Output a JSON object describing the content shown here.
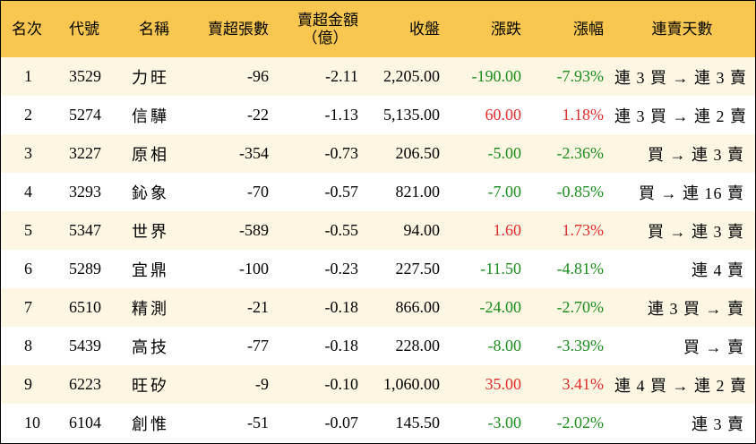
{
  "columns": {
    "rank": "名次",
    "code": "代號",
    "name": "名稱",
    "net_sell_lots": "賣超張數",
    "net_sell_amount_line1": "賣超金額",
    "net_sell_amount_line2": "（億）",
    "close": "收盤",
    "change": "漲跌",
    "change_pct": "漲幅",
    "streak": "連賣天數"
  },
  "colors": {
    "header_bg": "#f9c74f",
    "row_odd_bg": "#fdf6e3",
    "row_even_bg": "#ffffff",
    "up": "#e32b2b",
    "down": "#1a8c1a"
  },
  "rows": [
    {
      "rank": "1",
      "code": "3529",
      "name": "力旺",
      "net_sell_lots": "-96",
      "net_sell_amount": "-2.11",
      "close": "2,205.00",
      "change": "-190.00",
      "change_pct": "-7.93%",
      "direction": "down",
      "streak": "連 3 買 → 連 3 賣"
    },
    {
      "rank": "2",
      "code": "5274",
      "name": "信驊",
      "net_sell_lots": "-22",
      "net_sell_amount": "-1.13",
      "close": "5,135.00",
      "change": "60.00",
      "change_pct": "1.18%",
      "direction": "up",
      "streak": "連 3 買 → 連 2 賣"
    },
    {
      "rank": "3",
      "code": "3227",
      "name": "原相",
      "net_sell_lots": "-354",
      "net_sell_amount": "-0.73",
      "close": "206.50",
      "change": "-5.00",
      "change_pct": "-2.36%",
      "direction": "down",
      "streak": "買 → 連 3 賣"
    },
    {
      "rank": "4",
      "code": "3293",
      "name": "鈊象",
      "net_sell_lots": "-70",
      "net_sell_amount": "-0.57",
      "close": "821.00",
      "change": "-7.00",
      "change_pct": "-0.85%",
      "direction": "down",
      "streak": "買 → 連 16 賣"
    },
    {
      "rank": "5",
      "code": "5347",
      "name": "世界",
      "net_sell_lots": "-589",
      "net_sell_amount": "-0.55",
      "close": "94.00",
      "change": "1.60",
      "change_pct": "1.73%",
      "direction": "up",
      "streak": "買 → 連 3 賣"
    },
    {
      "rank": "6",
      "code": "5289",
      "name": "宜鼎",
      "net_sell_lots": "-100",
      "net_sell_amount": "-0.23",
      "close": "227.50",
      "change": "-11.50",
      "change_pct": "-4.81%",
      "direction": "down",
      "streak": "連 4 賣"
    },
    {
      "rank": "7",
      "code": "6510",
      "name": "精測",
      "net_sell_lots": "-21",
      "net_sell_amount": "-0.18",
      "close": "866.00",
      "change": "-24.00",
      "change_pct": "-2.70%",
      "direction": "down",
      "streak": "連 3 買 → 賣"
    },
    {
      "rank": "8",
      "code": "5439",
      "name": "高技",
      "net_sell_lots": "-77",
      "net_sell_amount": "-0.18",
      "close": "228.00",
      "change": "-8.00",
      "change_pct": "-3.39%",
      "direction": "down",
      "streak": "買 → 賣"
    },
    {
      "rank": "9",
      "code": "6223",
      "name": "旺矽",
      "net_sell_lots": "-9",
      "net_sell_amount": "-0.10",
      "close": "1,060.00",
      "change": "35.00",
      "change_pct": "3.41%",
      "direction": "up",
      "streak": "連 4 買 → 連 2 賣"
    },
    {
      "rank": "10",
      "code": "6104",
      "name": "創惟",
      "net_sell_lots": "-51",
      "net_sell_amount": "-0.07",
      "close": "145.50",
      "change": "-3.00",
      "change_pct": "-2.02%",
      "direction": "down",
      "streak": "連 3 賣"
    }
  ]
}
